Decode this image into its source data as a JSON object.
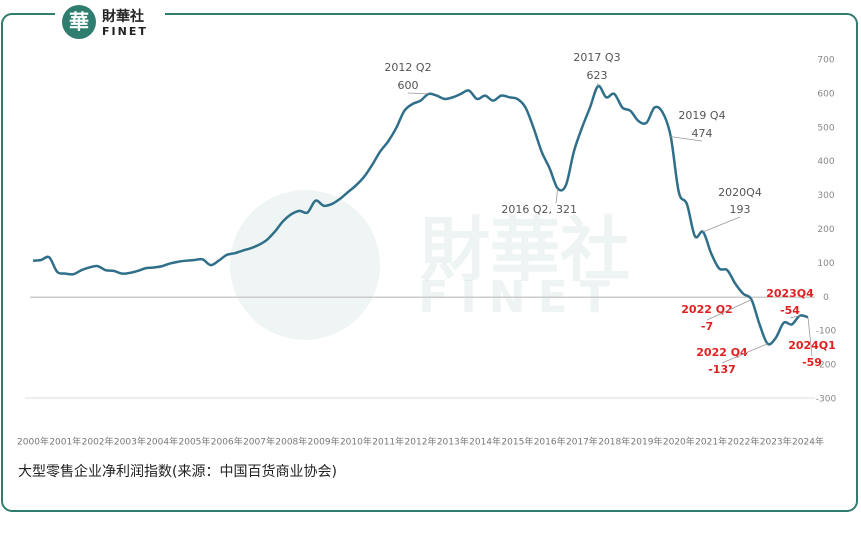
{
  "brand": "財華社",
  "brand_en": "FINET",
  "chart_data": {
    "type": "line",
    "caption": "大型零售企业净利润指数(来源：中国百货商业协会)",
    "color": "#2f6f8a",
    "categories": [
      "2000年",
      null,
      null,
      null,
      "2001年",
      null,
      null,
      null,
      "2002年",
      null,
      null,
      null,
      "2003年",
      null,
      null,
      null,
      "2004年",
      null,
      null,
      null,
      "2005年",
      null,
      null,
      null,
      "2006年",
      null,
      null,
      null,
      "2007年",
      null,
      null,
      null,
      "2008年",
      null,
      null,
      null,
      "2009年",
      null,
      null,
      null,
      "2010年",
      null,
      null,
      null,
      "2011年",
      null,
      null,
      null,
      "2012年",
      null,
      null,
      null,
      "2013年",
      null,
      null,
      null,
      "2014年",
      null,
      null,
      null,
      "2015年",
      null,
      null,
      null,
      "2016年",
      null,
      null,
      null,
      "2017年",
      null,
      null,
      null,
      "2018年",
      null,
      null,
      null,
      "2019年",
      null,
      null,
      null,
      "2020年",
      null,
      null,
      null,
      "2021年",
      null,
      null,
      null,
      "2022年",
      null,
      null,
      null,
      "2023年",
      null,
      null,
      null,
      "2024年"
    ],
    "values": [
      108,
      110,
      118,
      75,
      70,
      68,
      80,
      88,
      92,
      80,
      78,
      70,
      72,
      78,
      86,
      88,
      92,
      100,
      105,
      108,
      110,
      112,
      95,
      108,
      125,
      130,
      138,
      145,
      155,
      170,
      195,
      225,
      245,
      255,
      250,
      285,
      270,
      275,
      290,
      310,
      330,
      355,
      390,
      430,
      460,
      500,
      550,
      570,
      580,
      600,
      595,
      585,
      590,
      600,
      610,
      585,
      595,
      580,
      595,
      590,
      585,
      560,
      500,
      430,
      380,
      321,
      330,
      430,
      500,
      560,
      623,
      590,
      600,
      560,
      550,
      520,
      515,
      560,
      545,
      474,
      310,
      275,
      180,
      193,
      130,
      85,
      80,
      40,
      10,
      -7,
      -80,
      -137,
      -120,
      -75,
      -80,
      -54,
      -59
    ],
    "ylim": [
      -300,
      700
    ],
    "yticks": [
      700,
      600,
      500,
      400,
      300,
      200,
      100,
      0,
      -100,
      -200,
      -300
    ],
    "annotations": [
      {
        "index": 49,
        "title": "2012 Q2"
      },
      {
        "index": 65,
        "title": "2016 Q2,"
      },
      {
        "index": 70,
        "title": "2017 Q3"
      },
      {
        "index": 79,
        "title": "2019 Q4"
      },
      {
        "index": 83,
        "title": "2020Q4"
      },
      {
        "index": 89,
        "title": "2022 Q2",
        "color": "#e02020"
      },
      {
        "index": 91,
        "title": "2022 Q4",
        "color": "#e02020"
      },
      {
        "index": 95,
        "title": "2023Q4",
        "color": "#e02020"
      },
      {
        "index": 96,
        "title": "2024Q1",
        "color": "#e02020"
      }
    ]
  }
}
